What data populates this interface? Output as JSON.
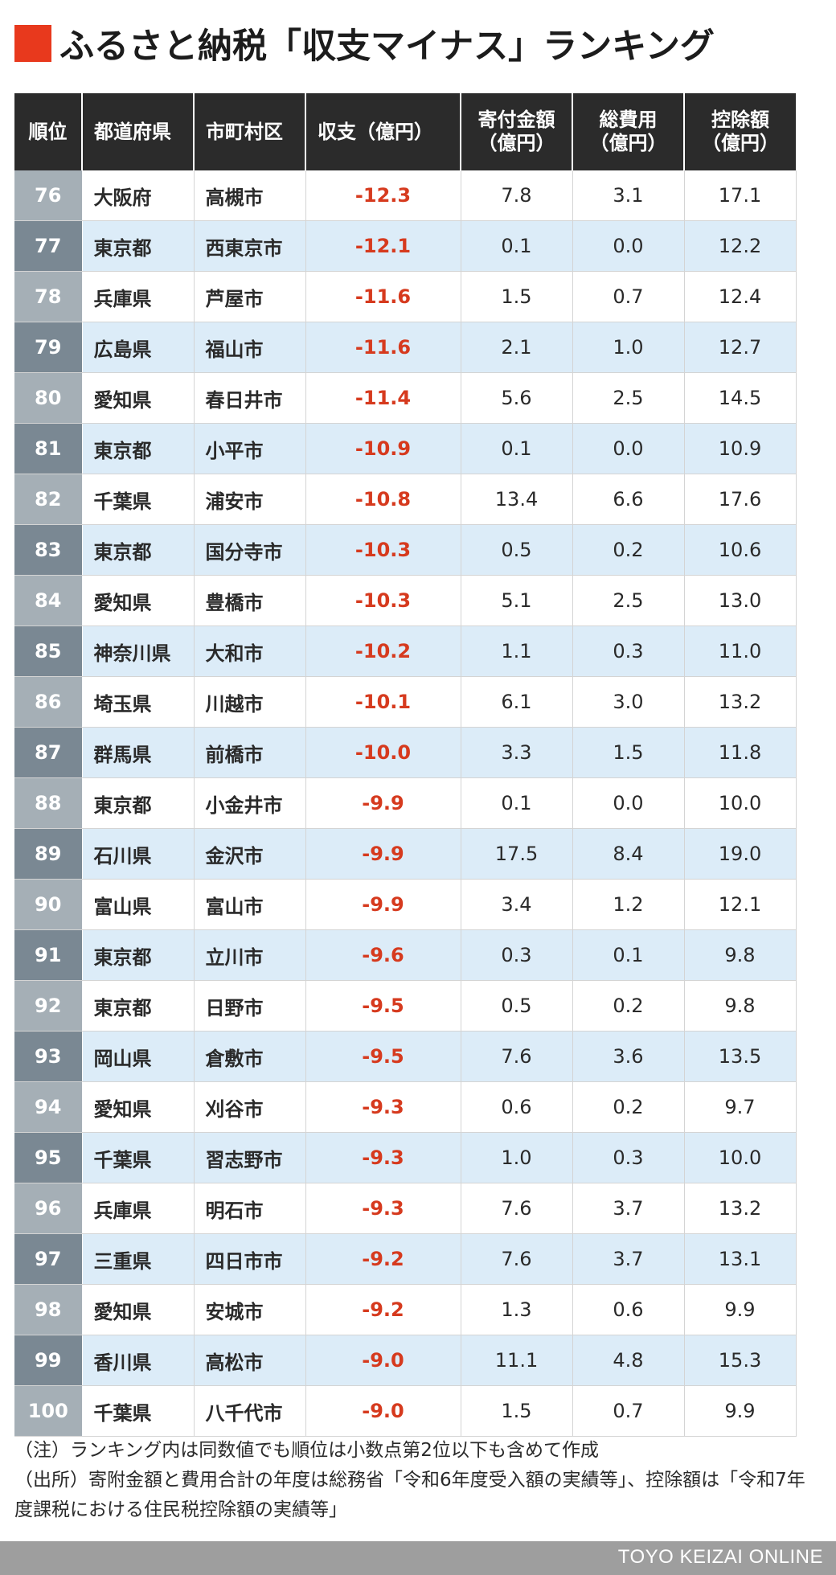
{
  "title": "ふるさと納税「収支マイナス」ランキング",
  "headers": {
    "rank": "順位",
    "prefecture": "都道府県",
    "municipality": "市町村区",
    "balance": "収支（億円）",
    "donation_l1": "寄付金額",
    "donation_l2": "（億円）",
    "cost_l1": "総費用",
    "cost_l2": "（億円）",
    "deduction_l1": "控除額",
    "deduction_l2": "（億円）"
  },
  "rows": [
    {
      "rank": "76",
      "pref": "大阪府",
      "city": "高槻市",
      "balance": "-12.3",
      "donation": "7.8",
      "cost": "3.1",
      "deduction": "17.1"
    },
    {
      "rank": "77",
      "pref": "東京都",
      "city": "西東京市",
      "balance": "-12.1",
      "donation": "0.1",
      "cost": "0.0",
      "deduction": "12.2"
    },
    {
      "rank": "78",
      "pref": "兵庫県",
      "city": "芦屋市",
      "balance": "-11.6",
      "donation": "1.5",
      "cost": "0.7",
      "deduction": "12.4"
    },
    {
      "rank": "79",
      "pref": "広島県",
      "city": "福山市",
      "balance": "-11.6",
      "donation": "2.1",
      "cost": "1.0",
      "deduction": "12.7"
    },
    {
      "rank": "80",
      "pref": "愛知県",
      "city": "春日井市",
      "balance": "-11.4",
      "donation": "5.6",
      "cost": "2.5",
      "deduction": "14.5"
    },
    {
      "rank": "81",
      "pref": "東京都",
      "city": "小平市",
      "balance": "-10.9",
      "donation": "0.1",
      "cost": "0.0",
      "deduction": "10.9"
    },
    {
      "rank": "82",
      "pref": "千葉県",
      "city": "浦安市",
      "balance": "-10.8",
      "donation": "13.4",
      "cost": "6.6",
      "deduction": "17.6"
    },
    {
      "rank": "83",
      "pref": "東京都",
      "city": "国分寺市",
      "balance": "-10.3",
      "donation": "0.5",
      "cost": "0.2",
      "deduction": "10.6"
    },
    {
      "rank": "84",
      "pref": "愛知県",
      "city": "豊橋市",
      "balance": "-10.3",
      "donation": "5.1",
      "cost": "2.5",
      "deduction": "13.0"
    },
    {
      "rank": "85",
      "pref": "神奈川県",
      "city": "大和市",
      "balance": "-10.2",
      "donation": "1.1",
      "cost": "0.3",
      "deduction": "11.0"
    },
    {
      "rank": "86",
      "pref": "埼玉県",
      "city": "川越市",
      "balance": "-10.1",
      "donation": "6.1",
      "cost": "3.0",
      "deduction": "13.2"
    },
    {
      "rank": "87",
      "pref": "群馬県",
      "city": "前橋市",
      "balance": "-10.0",
      "donation": "3.3",
      "cost": "1.5",
      "deduction": "11.8"
    },
    {
      "rank": "88",
      "pref": "東京都",
      "city": "小金井市",
      "balance": "-9.9",
      "donation": "0.1",
      "cost": "0.0",
      "deduction": "10.0"
    },
    {
      "rank": "89",
      "pref": "石川県",
      "city": "金沢市",
      "balance": "-9.9",
      "donation": "17.5",
      "cost": "8.4",
      "deduction": "19.0"
    },
    {
      "rank": "90",
      "pref": "富山県",
      "city": "富山市",
      "balance": "-9.9",
      "donation": "3.4",
      "cost": "1.2",
      "deduction": "12.1"
    },
    {
      "rank": "91",
      "pref": "東京都",
      "city": "立川市",
      "balance": "-9.6",
      "donation": "0.3",
      "cost": "0.1",
      "deduction": "9.8"
    },
    {
      "rank": "92",
      "pref": "東京都",
      "city": "日野市",
      "balance": "-9.5",
      "donation": "0.5",
      "cost": "0.2",
      "deduction": "9.8"
    },
    {
      "rank": "93",
      "pref": "岡山県",
      "city": "倉敷市",
      "balance": "-9.5",
      "donation": "7.6",
      "cost": "3.6",
      "deduction": "13.5"
    },
    {
      "rank": "94",
      "pref": "愛知県",
      "city": "刈谷市",
      "balance": "-9.3",
      "donation": "0.6",
      "cost": "0.2",
      "deduction": "9.7"
    },
    {
      "rank": "95",
      "pref": "千葉県",
      "city": "習志野市",
      "balance": "-9.3",
      "donation": "1.0",
      "cost": "0.3",
      "deduction": "10.0"
    },
    {
      "rank": "96",
      "pref": "兵庫県",
      "city": "明石市",
      "balance": "-9.3",
      "donation": "7.6",
      "cost": "3.7",
      "deduction": "13.2"
    },
    {
      "rank": "97",
      "pref": "三重県",
      "city": "四日市市",
      "balance": "-9.2",
      "donation": "7.6",
      "cost": "3.7",
      "deduction": "13.1"
    },
    {
      "rank": "98",
      "pref": "愛知県",
      "city": "安城市",
      "balance": "-9.2",
      "donation": "1.3",
      "cost": "0.6",
      "deduction": "9.9"
    },
    {
      "rank": "99",
      "pref": "香川県",
      "city": "高松市",
      "balance": "-9.0",
      "donation": "11.1",
      "cost": "4.8",
      "deduction": "15.3"
    },
    {
      "rank": "100",
      "pref": "千葉県",
      "city": "八千代市",
      "balance": "-9.0",
      "donation": "1.5",
      "cost": "0.7",
      "deduction": "9.9"
    }
  ],
  "notes": {
    "note": "（注）ランキング内は同数値でも順位は小数点第2位以下も含めて作成",
    "source": "（出所）寄附金額と費用合計の年度は総務省「令和6年度受入額の実績等」、控除額は「令和7年度課税における住民税控除額の実績等」"
  },
  "footer": {
    "brand": "TOYO KEIZAI ONLINE"
  },
  "colors": {
    "accent": "#e8391d",
    "header_bg": "#2b2b2b",
    "stripe": "#dcecf8",
    "negative_text": "#d63a1e"
  }
}
